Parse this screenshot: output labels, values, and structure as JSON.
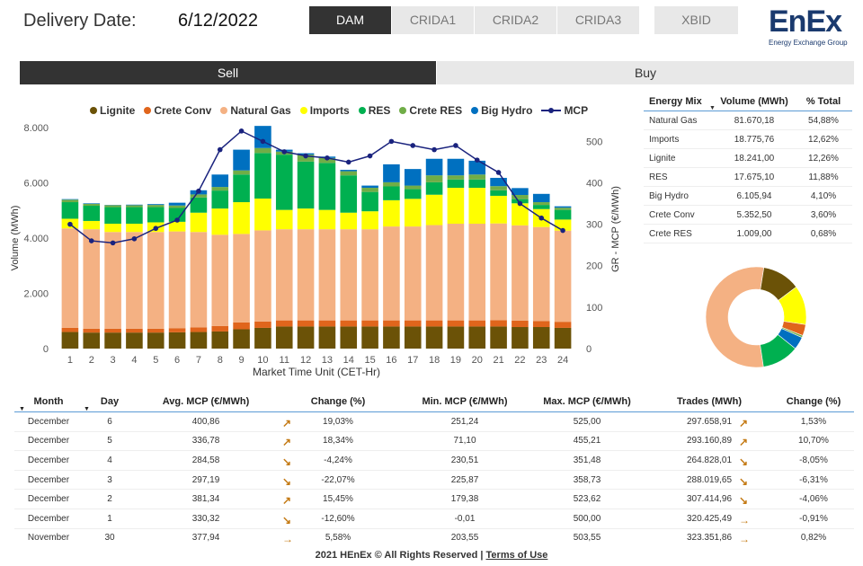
{
  "header": {
    "label": "Delivery Date:",
    "date": "6/12/2022"
  },
  "market_tabs": [
    "DAM",
    "CRIDA1",
    "CRIDA2",
    "CRIDA3",
    "XBID"
  ],
  "logo": {
    "main": "EnEx",
    "sub": "Energy Exchange Group"
  },
  "side_tabs": {
    "sell": "Sell",
    "buy": "Buy"
  },
  "colors": {
    "lignite": "#6b5207",
    "crete_conv": "#e0651c",
    "natural_gas": "#f4b183",
    "imports": "#ffff00",
    "res": "#00b050",
    "crete_res": "#70ad47",
    "big_hydro": "#0070c0",
    "mcp": "#1a237e"
  },
  "chart_data": {
    "type": "bar",
    "stacked": true,
    "xlabel": "Market Time Unit (CET-Hr)",
    "ylabel": "Volume (MWh)",
    "y2label": "GR - MCP (€/MWh)",
    "ylim": [
      0,
      8000
    ],
    "y2lim": [
      0,
      533.33
    ],
    "yticks": [
      "0",
      "2.000",
      "4.000",
      "6.000",
      "8.000"
    ],
    "y2ticks": [
      "0",
      "100",
      "200",
      "300",
      "400",
      "500"
    ],
    "categories": [
      "1",
      "2",
      "3",
      "4",
      "5",
      "6",
      "7",
      "8",
      "9",
      "10",
      "11",
      "12",
      "13",
      "14",
      "15",
      "16",
      "17",
      "18",
      "19",
      "20",
      "21",
      "22",
      "23",
      "24"
    ],
    "series": [
      {
        "name": "Lignite",
        "values": [
          600,
          580,
          580,
          580,
          580,
          590,
          600,
          620,
          700,
          750,
          800,
          800,
          800,
          800,
          800,
          800,
          800,
          800,
          800,
          800,
          800,
          780,
          780,
          750
        ]
      },
      {
        "name": "Crete Conv",
        "values": [
          150,
          140,
          140,
          140,
          140,
          150,
          170,
          200,
          250,
          230,
          220,
          220,
          220,
          220,
          220,
          220,
          220,
          220,
          220,
          220,
          230,
          230,
          220,
          220
        ]
      },
      {
        "name": "Natural Gas",
        "values": [
          3600,
          3600,
          3500,
          3500,
          3500,
          3500,
          3450,
          3300,
          3200,
          3300,
          3300,
          3300,
          3300,
          3300,
          3300,
          3400,
          3400,
          3450,
          3500,
          3500,
          3500,
          3450,
          3400,
          3300
        ]
      },
      {
        "name": "Imports",
        "values": [
          350,
          300,
          300,
          300,
          350,
          350,
          700,
          950,
          1150,
          1150,
          700,
          750,
          700,
          600,
          650,
          950,
          1000,
          1100,
          1300,
          1300,
          1000,
          800,
          650,
          400
        ]
      },
      {
        "name": "RES",
        "values": [
          600,
          550,
          600,
          600,
          550,
          500,
          550,
          650,
          1000,
          1650,
          2000,
          1700,
          1700,
          1350,
          700,
          500,
          350,
          450,
          300,
          300,
          200,
          150,
          150,
          350
        ]
      },
      {
        "name": "Crete RES",
        "values": [
          90,
          70,
          70,
          70,
          80,
          90,
          110,
          130,
          150,
          180,
          110,
          250,
          180,
          150,
          150,
          150,
          130,
          250,
          150,
          180,
          150,
          150,
          100,
          80
        ]
      },
      {
        "name": "Big Hydro",
        "values": [
          20,
          20,
          10,
          20,
          30,
          100,
          150,
          450,
          750,
          800,
          70,
          50,
          50,
          50,
          80,
          650,
          600,
          600,
          600,
          500,
          300,
          250,
          300,
          50
        ]
      }
    ],
    "line": {
      "name": "MCP",
      "values": [
        300,
        260,
        255,
        265,
        290,
        310,
        380,
        480,
        525,
        500,
        475,
        465,
        460,
        450,
        465,
        500,
        490,
        480,
        490,
        455,
        425,
        350,
        315,
        285
      ]
    },
    "legend": "top"
  },
  "energy_mix": {
    "headers": [
      "Energy Mix",
      "Volume (MWh)",
      "% Total"
    ],
    "rows": [
      [
        "Natural Gas",
        "81.670,18",
        "54,88%"
      ],
      [
        "Imports",
        "18.775,76",
        "12,62%"
      ],
      [
        "Lignite",
        "18.241,00",
        "12,26%"
      ],
      [
        "RES",
        "17.675,10",
        "11,88%"
      ],
      [
        "Big Hydro",
        "6.105,94",
        "4,10%"
      ],
      [
        "Crete Conv",
        "5.352,50",
        "3,60%"
      ],
      [
        "Crete RES",
        "1.009,00",
        "0,68%"
      ]
    ],
    "donut": [
      {
        "name": "Natural Gas",
        "value": 54.88,
        "color": "#f4b183"
      },
      {
        "name": "Lignite",
        "value": 12.26,
        "color": "#6b5207"
      },
      {
        "name": "Imports",
        "value": 12.62,
        "color": "#ffff00"
      },
      {
        "name": "Crete Conv",
        "value": 3.6,
        "color": "#e0651c"
      },
      {
        "name": "Crete RES",
        "value": 0.68,
        "color": "#70ad47"
      },
      {
        "name": "Big Hydro",
        "value": 4.1,
        "color": "#0070c0"
      },
      {
        "name": "RES",
        "value": 11.88,
        "color": "#00b050"
      }
    ]
  },
  "stats_table": {
    "headers": [
      "Month",
      "Day",
      "Avg. MCP (€/MWh)",
      "Change (%)",
      "Min. MCP (€/MWh)",
      "Max. MCP (€/MWh)",
      "Trades (MWh)",
      "Change (%)"
    ],
    "rows": [
      {
        "month": "December",
        "day": "6",
        "avg": "400,86",
        "arrow1": "up",
        "chg1": "19,03%",
        "min": "251,24",
        "max": "525,00",
        "trades": "297.658,91",
        "arrow2": "up",
        "chg2": "1,53%"
      },
      {
        "month": "December",
        "day": "5",
        "avg": "336,78",
        "arrow1": "up",
        "chg1": "18,34%",
        "min": "71,10",
        "max": "455,21",
        "trades": "293.160,89",
        "arrow2": "up",
        "chg2": "10,70%"
      },
      {
        "month": "December",
        "day": "4",
        "avg": "284,58",
        "arrow1": "down",
        "chg1": "-4,24%",
        "min": "230,51",
        "max": "351,48",
        "trades": "264.828,01",
        "arrow2": "down",
        "chg2": "-8,05%"
      },
      {
        "month": "December",
        "day": "3",
        "avg": "297,19",
        "arrow1": "down",
        "chg1": "-22,07%",
        "min": "225,87",
        "max": "358,73",
        "trades": "288.019,65",
        "arrow2": "down",
        "chg2": "-6,31%"
      },
      {
        "month": "December",
        "day": "2",
        "avg": "381,34",
        "arrow1": "up",
        "chg1": "15,45%",
        "min": "179,38",
        "max": "523,62",
        "trades": "307.414,96",
        "arrow2": "down",
        "chg2": "-4,06%"
      },
      {
        "month": "December",
        "day": "1",
        "avg": "330,32",
        "arrow1": "down",
        "chg1": "-12,60%",
        "min": "-0,01",
        "max": "500,00",
        "trades": "320.425,49",
        "arrow2": "right",
        "chg2": "-0,91%"
      },
      {
        "month": "November",
        "day": "30",
        "avg": "377,94",
        "arrow1": "right",
        "chg1": "5,58%",
        "min": "203,55",
        "max": "503,55",
        "trades": "323.351,86",
        "arrow2": "right",
        "chg2": "0,82%"
      }
    ]
  },
  "footer": {
    "text": "2021 HEnEx © All Rights Reserved | ",
    "link": "Terms of Use"
  }
}
